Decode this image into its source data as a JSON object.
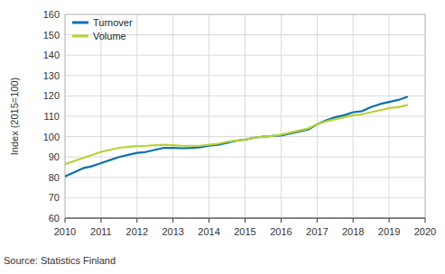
{
  "chart_data": {
    "type": "line",
    "y_label": "Index (2015=100)",
    "source": "Source: Statistics Finland",
    "x": [
      2010.0,
      2010.25,
      2010.5,
      2010.75,
      2011.0,
      2011.25,
      2011.5,
      2011.75,
      2012.0,
      2012.25,
      2012.5,
      2012.75,
      2013.0,
      2013.25,
      2013.5,
      2013.75,
      2014.0,
      2014.25,
      2014.5,
      2014.75,
      2015.0,
      2015.25,
      2015.5,
      2015.75,
      2016.0,
      2016.25,
      2016.5,
      2016.75,
      2017.0,
      2017.25,
      2017.5,
      2017.75,
      2018.0,
      2018.25,
      2018.5,
      2018.75,
      2019.0,
      2019.25,
      2019.5
    ],
    "series": [
      {
        "name": "Turnover",
        "color": "#0e6fb0",
        "values": [
          80.5,
          82.5,
          84.5,
          85.5,
          87,
          88.5,
          90,
          91,
          92,
          92.5,
          93.5,
          94.5,
          94.5,
          94.3,
          94.5,
          94.8,
          95.5,
          96,
          97,
          98,
          98.5,
          99.5,
          100,
          100.3,
          100.5,
          101.5,
          102.5,
          103.5,
          106,
          108,
          109.5,
          110.5,
          112,
          112.5,
          114.5,
          116,
          117,
          118,
          119.5
        ]
      },
      {
        "name": "Volume",
        "color": "#b5d334",
        "values": [
          86.5,
          88,
          89.5,
          91,
          92.5,
          93.5,
          94.5,
          95,
          95.3,
          95.5,
          95.8,
          96,
          95.8,
          95.5,
          95.5,
          95.5,
          96,
          96.5,
          97.5,
          98,
          98.5,
          99.5,
          100,
          100.3,
          101,
          102,
          103,
          104,
          106,
          107.5,
          108.5,
          109.5,
          110.5,
          111,
          112,
          113,
          114,
          114.5,
          115.5
        ]
      }
    ],
    "xlim": [
      2010,
      2020
    ],
    "xticks": [
      2010,
      2011,
      2012,
      2013,
      2014,
      2015,
      2016,
      2017,
      2018,
      2019,
      2020
    ],
    "ylim": [
      60,
      160
    ],
    "yticks": [
      60,
      70,
      80,
      90,
      100,
      110,
      120,
      130,
      140,
      150,
      160
    ],
    "grid": true,
    "legend": "upper left"
  }
}
